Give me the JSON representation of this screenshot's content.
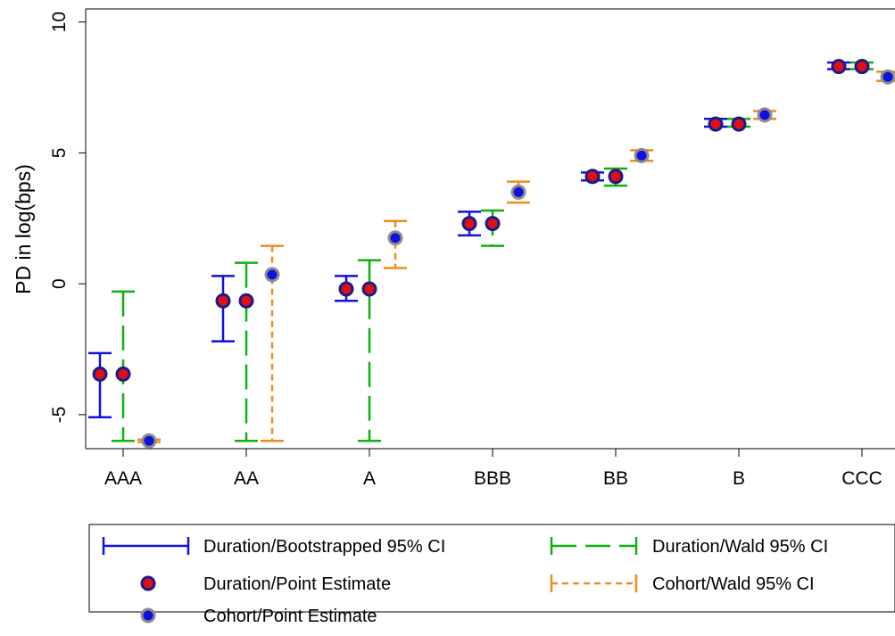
{
  "chart_data": {
    "type": "scatter",
    "ylabel": "PD in log(bps)",
    "xlabel": "",
    "categories": [
      "AAA",
      "AA",
      "A",
      "BBB",
      "BB",
      "B",
      "CCC"
    ],
    "ylim": [
      -6.3,
      10.5
    ],
    "yticks": [
      -5,
      0,
      5,
      10
    ],
    "yticks_rotated": true,
    "grid": false,
    "legend_position": "bottom",
    "colors": {
      "bootstrap_ci": "#1010e0",
      "wald_ci": "#10b010",
      "cohort_ci": "#f08c1e",
      "duration_point_fill": "#e01010",
      "duration_point_edge": "#1a1a8c",
      "cohort_point_fill": "#1010e0",
      "cohort_point_edge": "#8c8c8c"
    },
    "series": [
      {
        "name": "Duration/Bootstrapped 95% CI",
        "kind": "ci",
        "style": "solid",
        "lower": [
          -5.1,
          -2.2,
          -0.65,
          1.85,
          3.95,
          6.0,
          8.2
        ],
        "upper": [
          -2.65,
          0.3,
          0.3,
          2.75,
          4.25,
          6.3,
          8.45
        ]
      },
      {
        "name": "Duration/Point Estimate",
        "kind": "point",
        "values": [
          -3.45,
          -0.65,
          -0.2,
          2.3,
          4.1,
          6.1,
          8.3
        ]
      },
      {
        "name": "Cohort/Point Estimate",
        "kind": "point",
        "values": [
          -6.0,
          0.35,
          1.75,
          3.5,
          4.9,
          6.45,
          7.9
        ]
      },
      {
        "name": "Duration/Wald 95% CI",
        "kind": "ci",
        "style": "longdash",
        "lower": [
          -6.0,
          -6.0,
          -6.0,
          1.45,
          3.75,
          6.0,
          8.2
        ],
        "upper": [
          -0.3,
          0.8,
          0.9,
          2.8,
          4.4,
          6.3,
          8.45
        ]
      },
      {
        "name": "Cohort/Wald 95% CI",
        "kind": "ci",
        "style": "shortdash",
        "lower": [
          -6.05,
          -6.0,
          0.6,
          3.1,
          4.7,
          6.3,
          7.75
        ],
        "upper": [
          -5.95,
          1.45,
          2.4,
          3.9,
          5.1,
          6.6,
          8.1
        ]
      }
    ]
  }
}
